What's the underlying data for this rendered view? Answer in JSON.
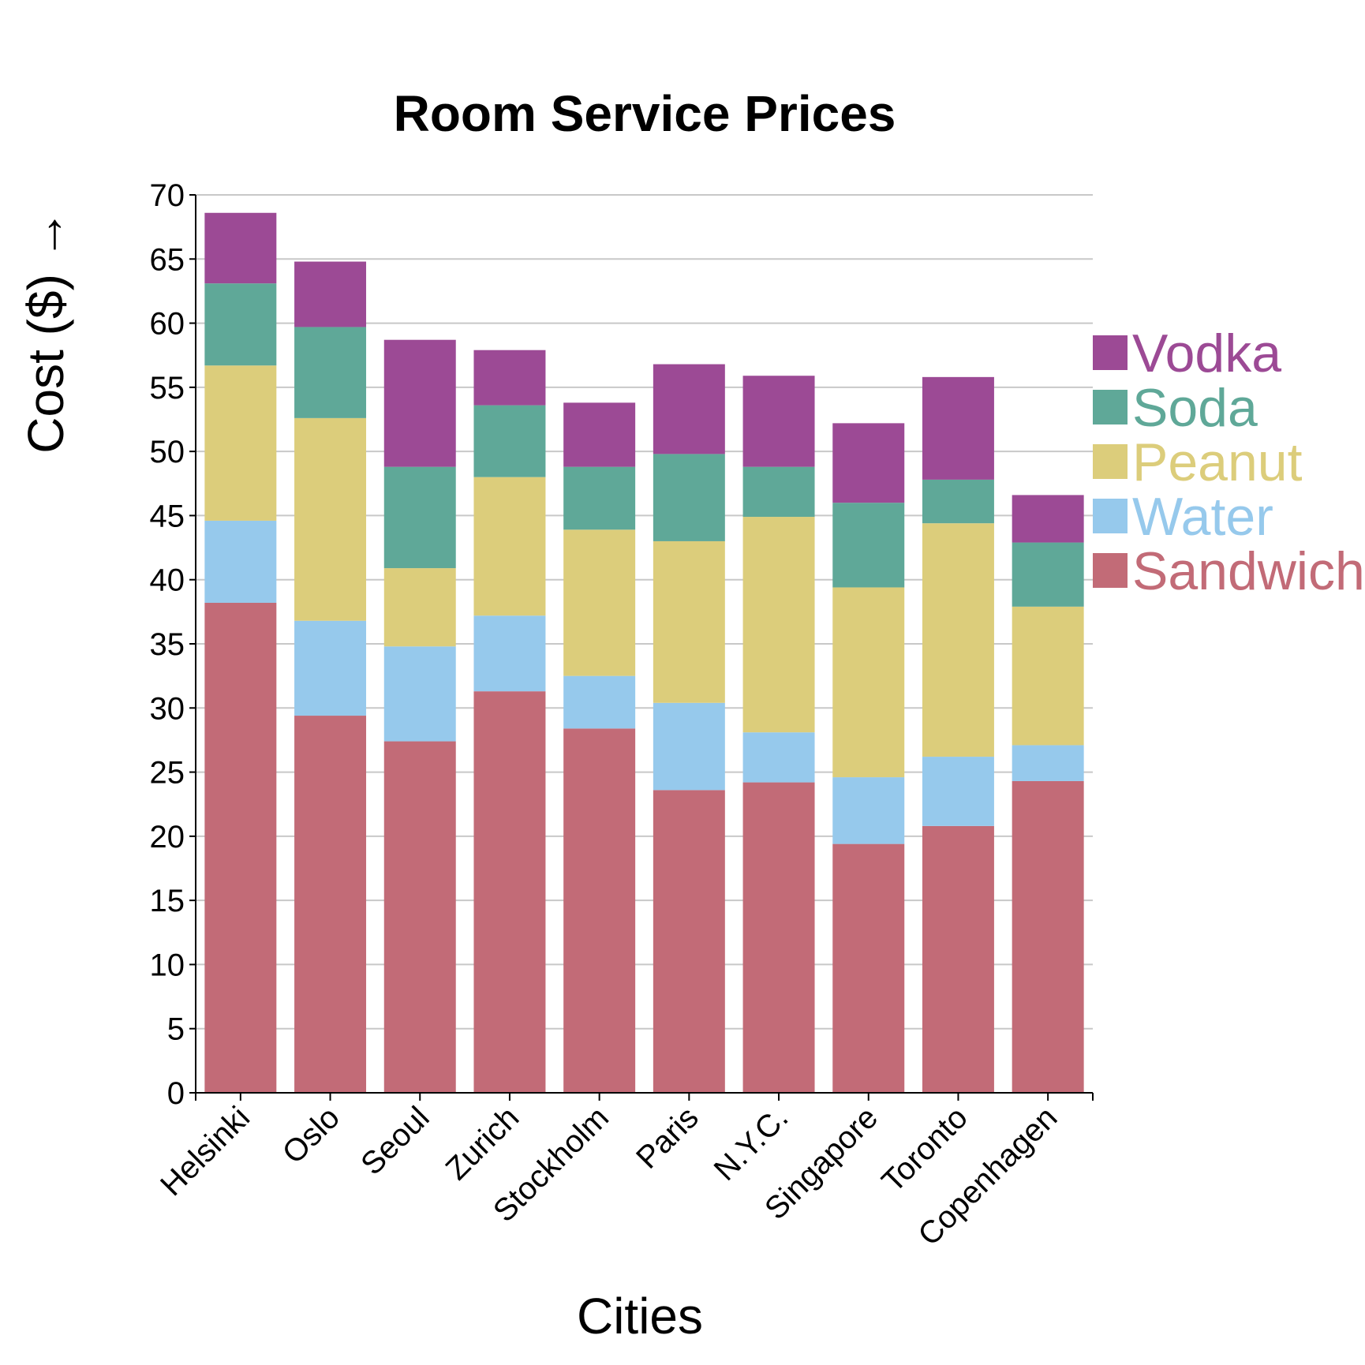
{
  "chart_data": {
    "type": "bar",
    "stacked": true,
    "title": "Room Service Prices",
    "xlabel": "Cities",
    "ylabel": "Cost ($) →",
    "ylim": [
      0,
      70
    ],
    "yticks": [
      0,
      5,
      10,
      15,
      20,
      25,
      30,
      35,
      40,
      45,
      50,
      55,
      60,
      65,
      70
    ],
    "grid": true,
    "legend_position": "right",
    "categories": [
      "Helsinki",
      "Oslo",
      "Seoul",
      "Zurich",
      "Stockholm",
      "Paris",
      "N.Y.C.",
      "Singapore",
      "Toronto",
      "Copenhagen"
    ],
    "series": [
      {
        "name": "Sandwich",
        "color": "#c26b77",
        "values": [
          38.2,
          29.4,
          27.4,
          31.3,
          28.4,
          23.6,
          24.2,
          19.4,
          20.8,
          24.3
        ]
      },
      {
        "name": "Water",
        "color": "#96c9ec",
        "values": [
          6.4,
          7.4,
          7.4,
          5.9,
          4.1,
          6.8,
          3.9,
          5.2,
          5.4,
          2.8
        ]
      },
      {
        "name": "Peanut",
        "color": "#dccd7b",
        "values": [
          12.1,
          15.8,
          6.1,
          10.8,
          11.4,
          12.6,
          16.8,
          14.8,
          18.2,
          10.8
        ]
      },
      {
        "name": "Soda",
        "color": "#5fa898",
        "values": [
          6.4,
          7.1,
          7.9,
          5.6,
          4.9,
          6.8,
          3.9,
          6.6,
          3.4,
          5.0
        ]
      },
      {
        "name": "Vodka",
        "color": "#9c4a95",
        "values": [
          5.5,
          5.1,
          9.9,
          4.3,
          5.0,
          7.0,
          7.1,
          6.2,
          8.0,
          3.7
        ]
      }
    ],
    "legend_order": [
      "Vodka",
      "Soda",
      "Peanut",
      "Water",
      "Sandwich"
    ]
  }
}
